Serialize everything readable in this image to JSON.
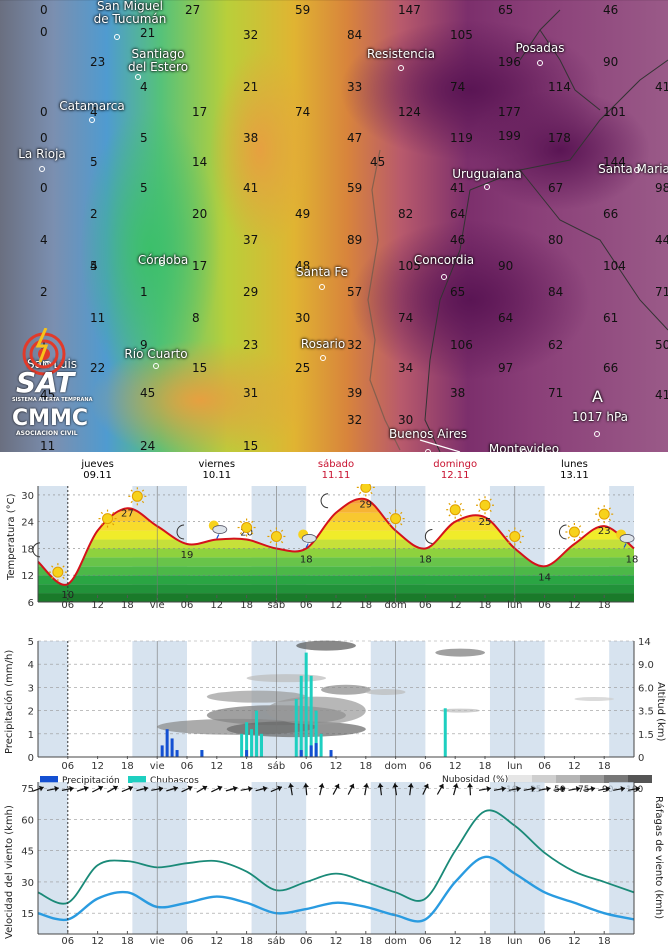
{
  "map": {
    "cities": [
      {
        "name": "San Miguel\nde Tucumán",
        "lines": [
          "San Miguel",
          "de Tucumán"
        ]
      },
      {
        "name": "Santiago del Estero",
        "lines": [
          "Santiago",
          "del Estero"
        ]
      },
      {
        "name": "Catamarca",
        "lines": [
          "Catamarca"
        ]
      },
      {
        "name": "La Rioja",
        "lines": [
          "La Rioja"
        ]
      },
      {
        "name": "Córdoba",
        "lines": [
          "Córdoba"
        ]
      },
      {
        "name": "Río Cuarto",
        "lines": [
          "Río Cuarto"
        ]
      },
      {
        "name": "San Luis",
        "lines": [
          "San Luis"
        ]
      },
      {
        "name": "Resistencia",
        "lines": [
          "Resistencia"
        ]
      },
      {
        "name": "Posadas",
        "lines": [
          "Posadas"
        ]
      },
      {
        "name": "Uruguaiana",
        "lines": [
          "Uruguaiana"
        ]
      },
      {
        "name": "Santa Maria",
        "lines": [
          "Santa Maria"
        ]
      },
      {
        "name": "Santa Fe",
        "lines": [
          "Santa Fe"
        ]
      },
      {
        "name": "Concordia",
        "lines": [
          "Concordia"
        ]
      },
      {
        "name": "Rosario",
        "lines": [
          "Rosario"
        ]
      },
      {
        "name": "Buenos Aires",
        "lines": [
          "Buenos Aires"
        ]
      },
      {
        "name": "Montevideo",
        "lines": [
          "Montevideo"
        ]
      }
    ],
    "values": [
      "0",
      "27",
      "59",
      "147",
      "65",
      "46",
      "0",
      "21",
      "32",
      "84",
      "105",
      "196",
      "90",
      "23",
      "4",
      "21",
      "33",
      "74",
      "177",
      "114",
      "41",
      "0",
      "4",
      "17",
      "74",
      "124",
      "199",
      "101",
      "0",
      "5",
      "38",
      "47",
      "119",
      "178",
      "",
      "5",
      "14",
      "45",
      "144",
      "0",
      "5",
      "41",
      "59",
      "41",
      "67",
      "98",
      "2",
      "20",
      "49",
      "82",
      "64",
      "66",
      "4",
      "4",
      "37",
      "89",
      "46",
      "80",
      "44",
      "5",
      "17",
      "48",
      "105",
      "90",
      "104",
      "2",
      "1",
      "29",
      "57",
      "65",
      "84",
      "71",
      "11",
      "8",
      "30",
      "74",
      "64",
      "61",
      "1",
      "9",
      "23",
      "32",
      "106",
      "62",
      "50",
      "22",
      "15",
      "25",
      "34",
      "97",
      "66",
      "45",
      "31",
      "39",
      "38",
      "71",
      "45",
      "41",
      "11",
      "24",
      "15",
      "30",
      "32"
    ],
    "pressure": {
      "letter": "A",
      "value": "1017 hPa"
    },
    "logo": {
      "title": "SAT",
      "subtitle": "SISTEMA ALERTA TEMPRANA",
      "org": "CMMC",
      "org_sub": "ASOCIACION CIVIL"
    }
  },
  "days": [
    {
      "name": "jueves",
      "date": "09.11",
      "weekend": false
    },
    {
      "name": "viernes",
      "date": "10.11",
      "weekend": false
    },
    {
      "name": "sábado",
      "date": "11.11",
      "weekend": true
    },
    {
      "name": "domingo",
      "date": "12.11",
      "weekend": true
    },
    {
      "name": "lunes",
      "date": "13.11",
      "weekend": false
    }
  ],
  "x_ticks": [
    "06",
    "12",
    "18",
    "vie",
    "06",
    "12",
    "18",
    "sáb",
    "06",
    "12",
    "18",
    "dom",
    "06",
    "12",
    "18",
    "lun",
    "06",
    "12",
    "18"
  ],
  "temp_panel": {
    "ylabel": "Temperatura (°C)",
    "y_ticks": [
      "30",
      "24",
      "18",
      "12",
      "6"
    ],
    "labels": [
      "10",
      "27",
      "19",
      "20",
      "18",
      "29",
      "18",
      "25",
      "14",
      "23",
      "18"
    ]
  },
  "precip_panel": {
    "ylabel_left": "Precipitación (mm/h)",
    "ylabel_right": "Altitud (km)",
    "y_ticks_left": [
      "5",
      "4",
      "3",
      "2",
      "1",
      "0"
    ],
    "y_ticks_right": [
      "14",
      "9.0",
      "6.0",
      "3.5",
      "1.5",
      "0"
    ],
    "legend": {
      "precip": "Precipitación",
      "showers": "Chubascos",
      "clouds_title": "Nubosidad (%)",
      "cloud_levels": [
        "10",
        "25",
        "50",
        "75",
        "90",
        "100"
      ]
    }
  },
  "wind_panel": {
    "ylabel_left": "Velocidad del viento (kmh)",
    "ylabel_right": "Ráfagas de viento (kmh)",
    "y_ticks": [
      "75",
      "60",
      "45",
      "30",
      "15"
    ]
  },
  "colors": {
    "temp_line": "#d4121b",
    "precip": "#1450d2",
    "showers": "#1ecfc0",
    "wind": "#2a9be0",
    "gusts": "#1a8a78",
    "night": "#c9d9ea"
  },
  "chart_data": [
    {
      "type": "line",
      "title": "",
      "ylabel": "Temperatura (°C)",
      "ylim": [
        6,
        32
      ],
      "x": [
        "09.11 00",
        "09.11 06",
        "09.11 12",
        "09.11 18",
        "10.11 00",
        "10.11 06",
        "10.11 12",
        "10.11 18",
        "11.11 00",
        "11.11 06",
        "11.11 12",
        "11.11 18",
        "12.11 00",
        "12.11 06",
        "12.11 12",
        "12.11 18",
        "13.11 00",
        "13.11 06",
        "13.11 12",
        "13.11 18",
        "14.11 00"
      ],
      "series": [
        {
          "name": "",
          "values": [
            15,
            10,
            22,
            27,
            23,
            19,
            20,
            20,
            18,
            18,
            26,
            29,
            22,
            18,
            24,
            25,
            18,
            14,
            19,
            23,
            18
          ]
        }
      ]
    },
    {
      "type": "bar",
      "ylabel": "Precipitación (mm/h)",
      "ylim": [
        0,
        5
      ],
      "series": [
        {
          "name": "Precipitación",
          "values": [
            0.5,
            1.2,
            0.8,
            0.4,
            0.3,
            0.2,
            0.5,
            0.3,
            0.6,
            0.3
          ]
        },
        {
          "name": "Chubascos",
          "values": [
            0.3,
            1.5,
            2.0,
            1.0,
            2.5,
            4.0,
            4.5,
            3.5,
            1.0,
            2.1
          ]
        }
      ]
    },
    {
      "type": "line",
      "ylabel": "Velocidad del viento (kmh)",
      "ylim": [
        5,
        78
      ],
      "x": [
        "09.11 00",
        "09.11 06",
        "09.11 12",
        "09.11 18",
        "10.11 00",
        "10.11 06",
        "10.11 12",
        "10.11 18",
        "11.11 00",
        "11.11 06",
        "11.11 12",
        "11.11 18",
        "12.11 00",
        "12.11 06",
        "12.11 12",
        "12.11 18",
        "13.11 00",
        "13.11 06",
        "13.11 12",
        "13.11 18",
        "14.11 00"
      ],
      "series": [
        {
          "name": "",
          "values": [
            15,
            12,
            22,
            25,
            18,
            20,
            23,
            20,
            15,
            17,
            20,
            18,
            14,
            12,
            30,
            42,
            34,
            25,
            20,
            15,
            12
          ]
        },
        {
          "name": "",
          "values": [
            25,
            20,
            38,
            40,
            37,
            39,
            40,
            35,
            26,
            30,
            34,
            30,
            25,
            22,
            45,
            64,
            57,
            44,
            35,
            30,
            25
          ]
        }
      ]
    }
  ]
}
